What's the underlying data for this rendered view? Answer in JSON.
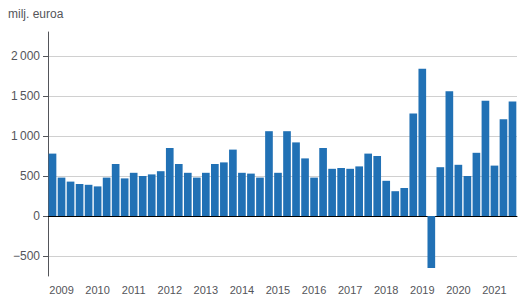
{
  "chart_data": {
    "type": "bar",
    "ylabel": "milj. euroa",
    "categories": [
      null,
      "2009",
      null,
      null,
      null,
      "2010",
      null,
      null,
      null,
      "2011",
      null,
      null,
      null,
      "2012",
      null,
      null,
      null,
      "2013",
      null,
      null,
      null,
      "2014",
      null,
      null,
      null,
      "2015",
      null,
      null,
      null,
      "2016",
      null,
      null,
      null,
      "2017",
      null,
      null,
      null,
      "2018",
      null,
      null,
      null,
      "2019",
      null,
      null,
      null,
      "2020",
      null,
      null,
      null,
      "2021",
      null,
      null
    ],
    "values": [
      780,
      480,
      430,
      400,
      390,
      370,
      480,
      650,
      470,
      540,
      500,
      520,
      560,
      850,
      650,
      540,
      480,
      540,
      650,
      670,
      830,
      540,
      530,
      480,
      1060,
      540,
      1060,
      920,
      720,
      480,
      850,
      590,
      600,
      590,
      620,
      780,
      750,
      440,
      310,
      350,
      1280,
      1840,
      -650,
      610,
      1560,
      640,
      500,
      790,
      1440,
      630,
      1210,
      1430
    ],
    "color": "#2171b5",
    "ylim": [
      -750,
      2300
    ],
    "yticks": [
      {
        "value": -500,
        "label": "−500"
      },
      0,
      500,
      {
        "value": 1000,
        "label": "1 000"
      },
      {
        "value": 1500,
        "label": "1 500"
      },
      {
        "value": 2000,
        "label": "2 000"
      }
    ],
    "grid": true
  }
}
